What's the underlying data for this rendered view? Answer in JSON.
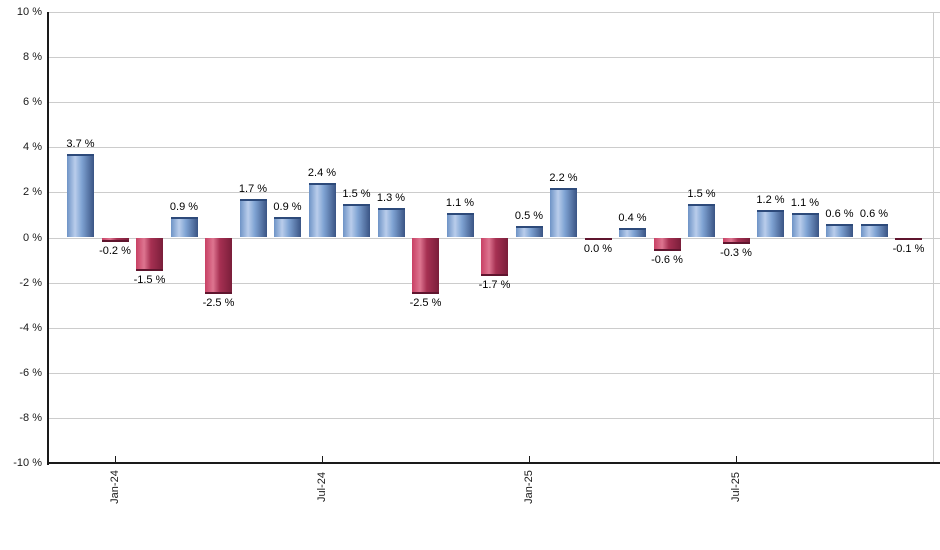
{
  "chart_data": {
    "type": "bar",
    "title": "",
    "xlabel": "",
    "ylabel": "",
    "ylim": [
      -10,
      10
    ],
    "grid": true,
    "legend": false,
    "values": [
      3.7,
      -0.2,
      -1.5,
      0.9,
      -2.5,
      1.7,
      0.9,
      2.4,
      1.5,
      1.3,
      -2.5,
      1.1,
      -1.7,
      0.5,
      2.2,
      0.0,
      0.4,
      -0.6,
      1.5,
      -0.3,
      1.2,
      1.1,
      0.6,
      0.6,
      -0.1
    ],
    "bar_labels": [
      "3.7 %",
      "-0.2 %",
      "-1.5 %",
      "0.9 %",
      "-2.5 %",
      "1.7 %",
      "0.9 %",
      "2.4 %",
      "1.5 %",
      "1.3 %",
      "-2.5 %",
      "1.1 %",
      "-1.7 %",
      "0.5 %",
      "2.2 %",
      "0.0 %",
      "0.4 %",
      "-0.6 %",
      "1.5 %",
      "-0.3 %",
      "1.2 %",
      "1.1 %",
      "0.6 %",
      "0.6 %",
      "-0.1 %"
    ],
    "zero_styled_as_negative": true,
    "x_ticks": [
      {
        "label": "Jan-24",
        "index": 1
      },
      {
        "label": "Jul-24",
        "index": 7
      },
      {
        "label": "Jan-25",
        "index": 13
      },
      {
        "label": "Jul-25",
        "index": 19
      }
    ],
    "y_tick_labels": [
      "10 %",
      "8 %",
      "6 %",
      "4 %",
      "2 %",
      "0 %",
      "-2 %",
      "-4 %",
      "-6 %",
      "-8 %",
      "-10 %"
    ],
    "y_tick_values": [
      10,
      8,
      6,
      4,
      2,
      0,
      -2,
      -4,
      -6,
      -8,
      -10
    ],
    "colors": {
      "positive_gradient": [
        "#6e93c6",
        "#b9cdeb",
        "#7fa3d3",
        "#3a5484"
      ],
      "positive_cap": "#2d4a7a",
      "negative_gradient": [
        "#c84064",
        "#dd7590",
        "#a63052",
        "#7a1e3a"
      ],
      "negative_cap": "#5f152e",
      "gridline": "#cccccc",
      "axis": "#1a1a1a",
      "label_text": "#000000",
      "background": "#ffffff"
    }
  }
}
